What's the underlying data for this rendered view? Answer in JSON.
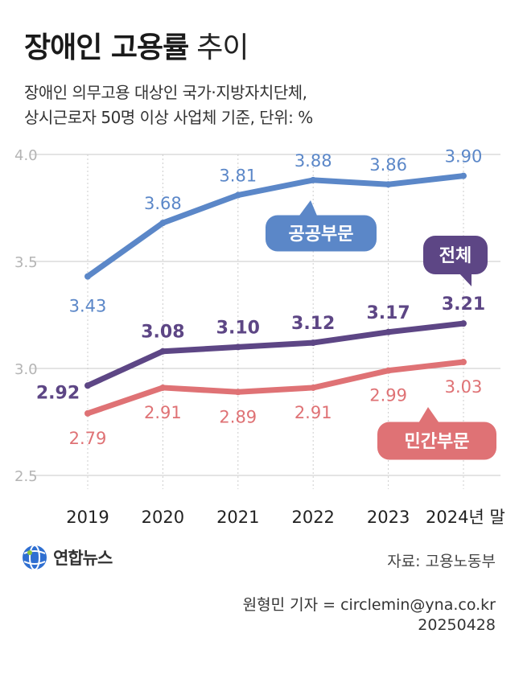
{
  "header": {
    "title_bold": "장애인 고용률",
    "title_light": "추이",
    "subtitle_line1": "장애인 의무고용 대상인 국가·지방자치단체,",
    "subtitle_line2": "상시근로자 50명 이상 사업체 기준, 단위: %"
  },
  "chart_data": {
    "type": "line",
    "categories": [
      "2019",
      "2020",
      "2021",
      "2022",
      "2023",
      "2024년 말"
    ],
    "ylim": [
      2.5,
      4.0
    ],
    "yticks": [
      "2.5",
      "3.0",
      "3.5",
      "4.0"
    ],
    "grid": true,
    "series": [
      {
        "name": "공공부문",
        "color": "#5b87c8",
        "values": [
          3.43,
          3.68,
          3.81,
          3.88,
          3.86,
          3.9
        ],
        "labels": [
          "3.43",
          "3.68",
          "3.81",
          "3.88",
          "3.86",
          "3.90"
        ]
      },
      {
        "name": "전체",
        "color": "#5d4685",
        "values": [
          2.92,
          3.08,
          3.1,
          3.12,
          3.17,
          3.21
        ],
        "labels": [
          "2.92",
          "3.08",
          "3.10",
          "3.12",
          "3.17",
          "3.21"
        ]
      },
      {
        "name": "민간부문",
        "color": "#df7275",
        "values": [
          2.79,
          2.91,
          2.89,
          2.91,
          2.99,
          3.03
        ],
        "labels": [
          "2.79",
          "2.91",
          "2.89",
          "2.91",
          "2.99",
          "3.03"
        ]
      }
    ]
  },
  "footer": {
    "logo_text": "연합뉴스",
    "logo_icon": "yonhap-globe-icon",
    "source": "자료: 고용노동부",
    "credit_line1": "원형민 기자 = circlemin@yna.co.kr",
    "credit_line2": "20250428"
  }
}
